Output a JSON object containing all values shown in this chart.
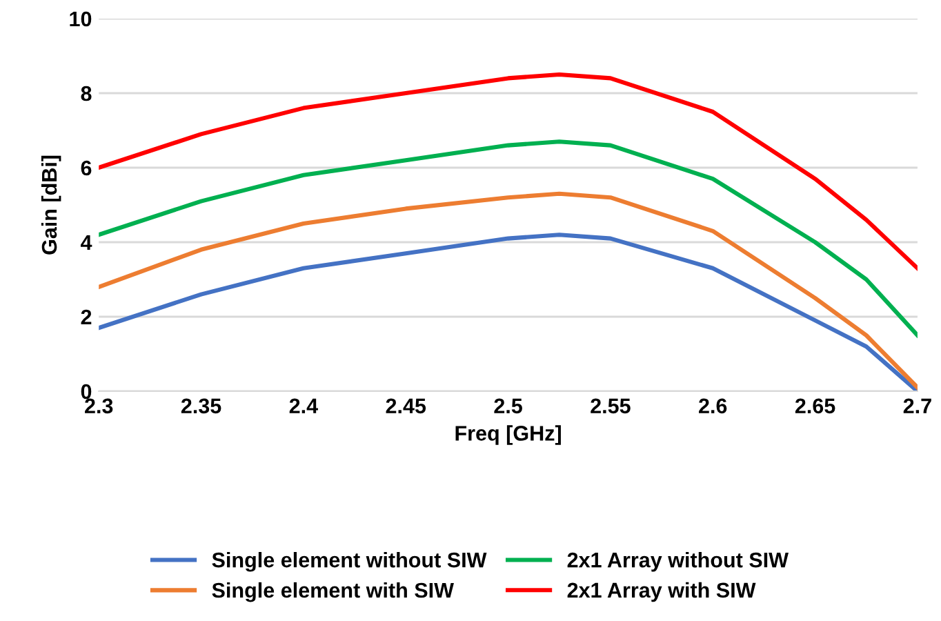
{
  "chart_data": {
    "type": "line",
    "xlabel": "Freq [GHz]",
    "ylabel": "Gain [dBi]",
    "x": [
      2.3,
      2.35,
      2.4,
      2.45,
      2.5,
      2.525,
      2.55,
      2.6,
      2.65,
      2.675,
      2.7
    ],
    "series": [
      {
        "name": "Single element without SIW",
        "color": "#4472c4",
        "values": [
          1.7,
          2.6,
          3.3,
          3.7,
          4.1,
          4.2,
          4.1,
          3.3,
          1.9,
          1.2,
          0
        ]
      },
      {
        "name": "Single element with SIW",
        "color": "#ed7d31",
        "values": [
          2.8,
          3.8,
          4.5,
          4.9,
          5.2,
          5.3,
          5.2,
          4.3,
          2.5,
          1.5,
          0.1
        ]
      },
      {
        "name": "2x1 Array without SIW",
        "color": "#00b050",
        "values": [
          4.2,
          5.1,
          5.8,
          6.2,
          6.6,
          6.7,
          6.6,
          5.7,
          4.0,
          3.0,
          1.5
        ]
      },
      {
        "name": "2x1 Array with SIW",
        "color": "#ff0000",
        "values": [
          6.0,
          6.9,
          7.6,
          8.0,
          8.4,
          8.5,
          8.4,
          7.5,
          5.7,
          4.6,
          3.3
        ]
      }
    ],
    "xlim": [
      2.3,
      2.7
    ],
    "xticks": [
      2.3,
      2.35,
      2.4,
      2.45,
      2.5,
      2.55,
      2.6,
      2.65,
      2.7
    ],
    "ylim": [
      0,
      10
    ],
    "yticks": [
      0,
      2,
      4,
      6,
      8,
      10
    ],
    "grid": "y",
    "legend": "bottom",
    "marker": "none",
    "line_style": "solid"
  }
}
